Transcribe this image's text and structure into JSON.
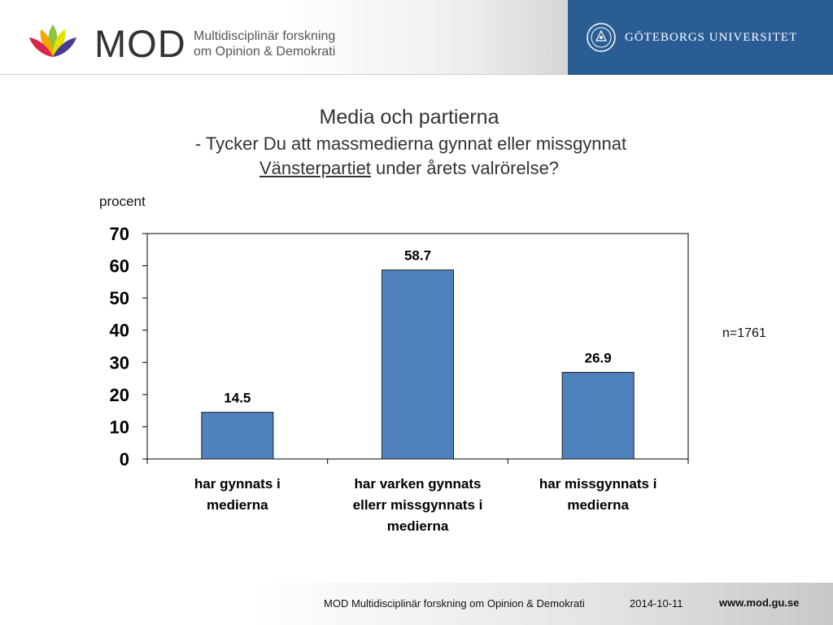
{
  "header": {
    "logo_word": "MOD",
    "logo_subtitle_line1": "Multidisciplinär forskning",
    "logo_subtitle_line2": "om Opinion & Demokrati",
    "university": "GÖTEBORGS UNIVERSITET"
  },
  "slide": {
    "title": "Media och partierna",
    "question_prefix": "- ",
    "question_line1": "Tycker Du att massmedierna gynnat eller missgynnat",
    "question_party": "Vänsterpartiet",
    "question_line2_rest": " under årets valrörelse?",
    "sample_size": "n=1761"
  },
  "chart_data": {
    "type": "bar",
    "categories": [
      [
        "har gynnats i",
        "medierna"
      ],
      [
        "har varken gynnats",
        "ellerr missgynnats i",
        "medierna"
      ],
      [
        "har missgynnats i",
        "medierna"
      ]
    ],
    "values": [
      14.5,
      58.7,
      26.9
    ],
    "data_labels": [
      "14.5",
      "58.7",
      "26.9"
    ],
    "ylabel": "procent",
    "ylim": [
      0,
      70
    ],
    "yticks": [
      0,
      10,
      20,
      30,
      40,
      50,
      60,
      70
    ],
    "bar_color": "#4f81bd",
    "grid": false
  },
  "footer": {
    "org": "MOD Multidisciplinär forskning om Opinion & Demokrati",
    "date": "2014-10-11",
    "url": "www.mod.gu.se"
  }
}
